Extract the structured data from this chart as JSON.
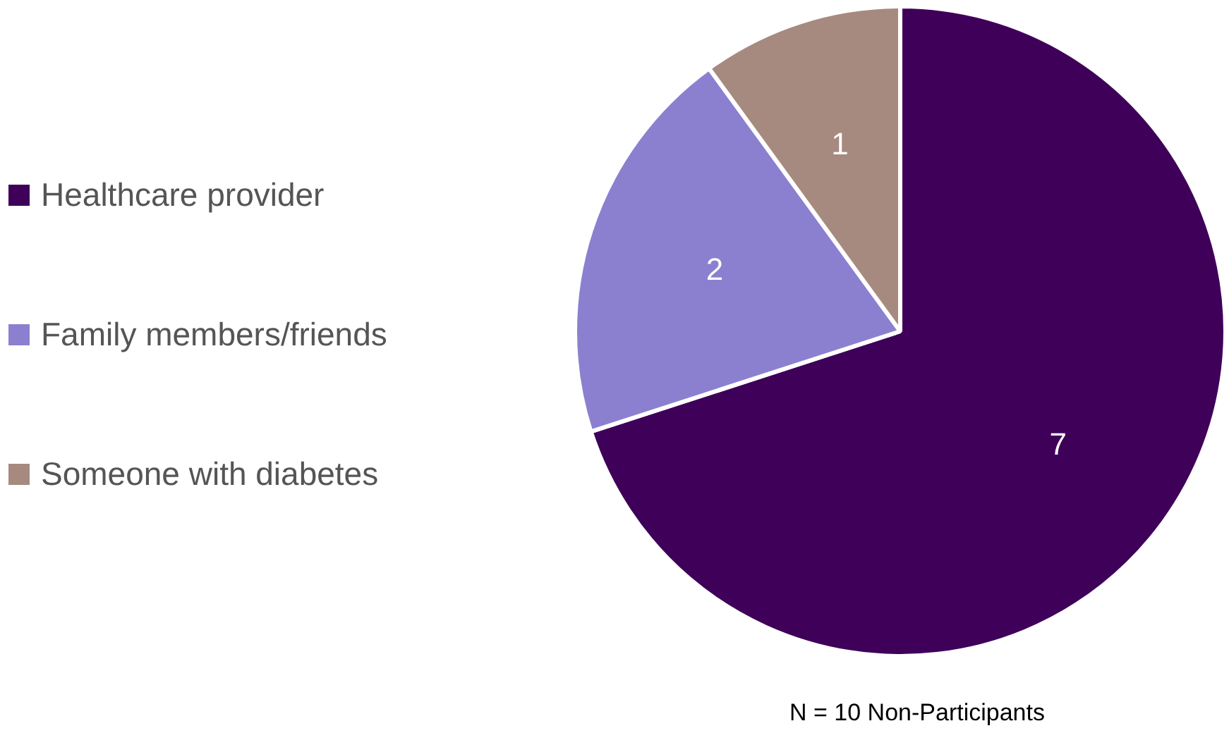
{
  "chart_data": {
    "type": "pie",
    "categories": [
      "Healthcare provider",
      "Family members/friends",
      "Someone with diabetes"
    ],
    "values": [
      7,
      2,
      1
    ],
    "colors": [
      "#3f0059",
      "#8b80cf",
      "#a68a80"
    ],
    "data_labels": true,
    "legend": "left",
    "annotations": [
      "N = 10 Non-Participants"
    ]
  }
}
